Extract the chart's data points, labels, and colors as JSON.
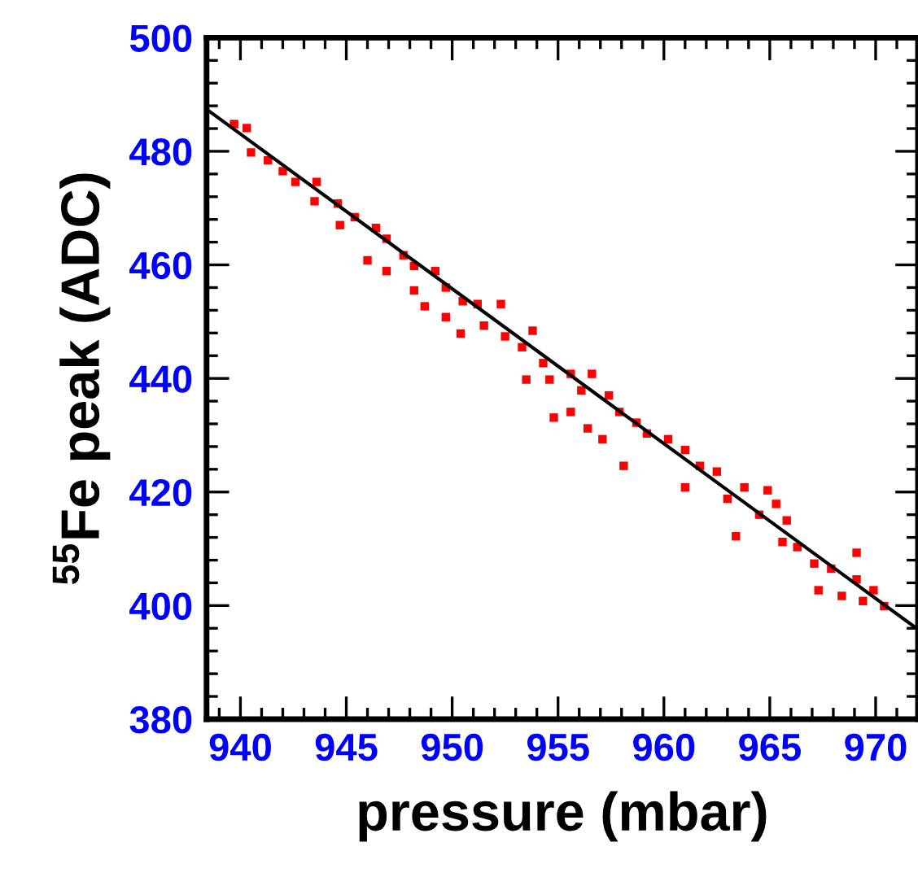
{
  "chart_data": {
    "type": "scatter",
    "xlabel": "pressure (mbar)",
    "ylabel": "$^{55}$Fe peak (ADC)",
    "xlim": [
      938.4,
      972
    ],
    "xticks": [
      940,
      945,
      950,
      955,
      960,
      965,
      970
    ],
    "ylim": [
      380,
      500
    ],
    "yticks": [
      380,
      400,
      420,
      440,
      460,
      480,
      500
    ],
    "grid": false,
    "legend": false,
    "series": [
      {
        "marker": "square",
        "color": "#ff0000",
        "x": [
          939.7,
          940.3,
          940.5,
          941.3,
          942.0,
          942.6,
          943.6,
          943.5,
          944.6,
          944.7,
          945.4,
          946.0,
          946.4,
          946.9,
          946.9,
          947.7,
          948.2,
          948.2,
          948.7,
          949.2,
          949.7,
          949.7,
          950.4,
          950.5,
          951.2,
          951.5,
          952.3,
          952.5,
          953.3,
          953.8,
          953.5,
          954.3,
          954.6,
          954.8,
          955.6,
          955.6,
          956.1,
          956.4,
          956.6,
          957.1,
          957.4,
          957.9,
          958.1,
          958.7,
          959.2,
          960.2,
          961.0,
          961.0,
          961.7,
          962.5,
          963.0,
          963.4,
          963.8,
          964.5,
          964.9,
          965.3,
          965.6,
          965.8,
          966.3,
          967.1,
          967.3,
          967.9,
          968.4,
          969.1,
          969.1,
          969.4,
          969.9,
          970.4
        ],
        "values": [
          484.8,
          484.1,
          479.8,
          478.4,
          476.5,
          474.6,
          474.6,
          471.2,
          470.8,
          467.0,
          468.4,
          460.8,
          466.5,
          464.6,
          458.9,
          461.7,
          459.8,
          455.5,
          452.7,
          458.9,
          456.0,
          450.8,
          447.9,
          453.6,
          453.1,
          449.3,
          453.1,
          447.4,
          445.5,
          448.4,
          439.8,
          442.7,
          439.8,
          433.1,
          440.8,
          434.1,
          437.9,
          431.2,
          440.8,
          429.3,
          437.0,
          434.1,
          424.6,
          432.2,
          430.3,
          429.3,
          427.4,
          420.8,
          424.6,
          423.6,
          418.8,
          412.2,
          420.8,
          416.0,
          420.3,
          417.9,
          411.2,
          415.0,
          410.3,
          407.4,
          402.7,
          406.5,
          401.7,
          409.3,
          404.6,
          400.8,
          402.7,
          399.9
        ]
      },
      {
        "type": "line",
        "color": "#000000",
        "x": [
          938.55,
          972
        ],
        "values": [
          487.0,
          395.8
        ]
      }
    ]
  }
}
